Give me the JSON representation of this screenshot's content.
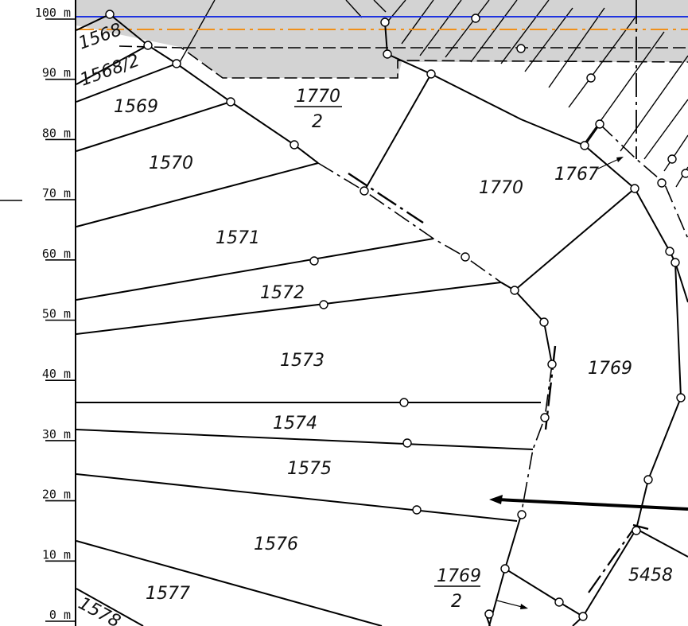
{
  "scale": {
    "labels": [
      "0 m",
      "10 m",
      "20 m",
      "30 m",
      "40 m",
      "50 m",
      "60 m",
      "70 m",
      "80 m",
      "90 m",
      "100 m"
    ]
  },
  "parcels": [
    {
      "id": "1568",
      "label": "1568"
    },
    {
      "id": "1568-2",
      "label": "1568/2"
    },
    {
      "id": "1569",
      "label": "1569"
    },
    {
      "id": "1570",
      "label": "1570"
    },
    {
      "id": "1571",
      "label": "1571"
    },
    {
      "id": "1572",
      "label": "1572"
    },
    {
      "id": "1573",
      "label": "1573"
    },
    {
      "id": "1574",
      "label": "1574"
    },
    {
      "id": "1575",
      "label": "1575"
    },
    {
      "id": "1576",
      "label": "1576"
    },
    {
      "id": "1577",
      "label": "1577"
    },
    {
      "id": "1578",
      "label": "1578"
    },
    {
      "id": "1767",
      "label": "1767"
    },
    {
      "id": "1769",
      "label": "1769"
    },
    {
      "id": "1770",
      "label": "1770"
    },
    {
      "id": "5458",
      "label": "5458"
    }
  ],
  "fractions": {
    "f1770": {
      "numerator": "1770",
      "denominator": "2"
    },
    "f1769": {
      "numerator": "1769",
      "denominator": "2"
    }
  },
  "colors": {
    "shaded_area": "#d3d3d3",
    "blue_line": "#1f33e0",
    "orange_line": "#f0901a",
    "boundary": "#000000"
  }
}
